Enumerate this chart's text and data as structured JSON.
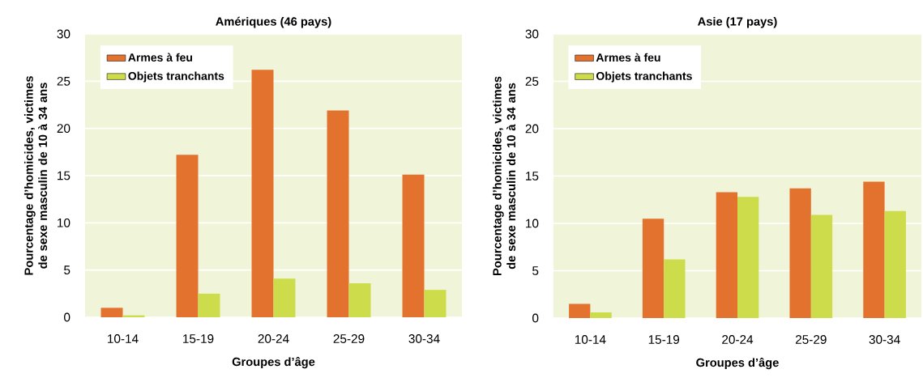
{
  "chart_data": [
    {
      "type": "bar",
      "title": "Amériques (46 pays)",
      "xlabel": "Groupes d’âge",
      "ylabel": "Pourcentage d’homicides, victimes de sexe masculin de 10 à 34 ans",
      "categories": [
        "10-14",
        "15-19",
        "20-24",
        "25-29",
        "30-34"
      ],
      "series": [
        {
          "name": "Armes à feu",
          "color": "#e3722f",
          "values": [
            1.0,
            17.2,
            26.2,
            21.9,
            15.1
          ]
        },
        {
          "name": "Objets tranchants",
          "color": "#cddc4a",
          "values": [
            0.2,
            2.5,
            4.1,
            3.6,
            2.9
          ]
        }
      ],
      "ylim": [
        0,
        30
      ],
      "yticks": [
        0,
        5,
        10,
        15,
        20,
        25,
        30
      ],
      "grid": "y",
      "legend": "top left"
    },
    {
      "type": "bar",
      "title": "Asie (17 pays)",
      "xlabel": "Groupes d’âge",
      "ylabel": "Pourcentage d’homicides, victimes de sexe masculin de 10 à 34 ans",
      "categories": [
        "10-14",
        "15-19",
        "20-24",
        "25-29",
        "30-34"
      ],
      "series": [
        {
          "name": "Armes à feu",
          "color": "#e3722f",
          "values": [
            1.5,
            10.5,
            13.3,
            13.7,
            14.4
          ]
        },
        {
          "name": "Objets tranchants",
          "color": "#cddc4a",
          "values": [
            0.6,
            6.2,
            12.8,
            10.9,
            11.3
          ]
        }
      ],
      "ylim": [
        0,
        30
      ],
      "yticks": [
        0,
        5,
        10,
        15,
        20,
        25,
        30
      ],
      "grid": "y",
      "legend": "top left"
    }
  ]
}
